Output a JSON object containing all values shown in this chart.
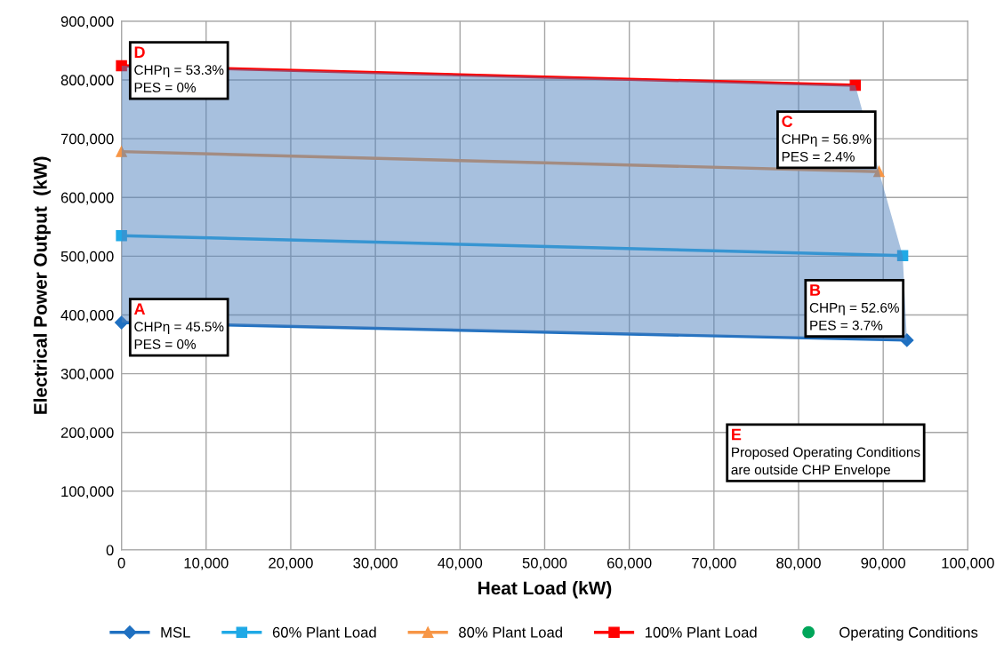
{
  "chart_data": {
    "type": "line",
    "xlabel": "Heat Load (kW)",
    "ylabel": "Electrical Power Output  (kW)",
    "xlim": [
      0,
      100000
    ],
    "ylim": [
      0,
      900000
    ],
    "xticks": [
      0,
      {
        "value": 10000,
        "label": "10,000"
      },
      {
        "value": 20000,
        "label": "20,000"
      },
      {
        "value": 30000,
        "label": "30,000"
      },
      {
        "value": 40000,
        "label": "40,000"
      },
      {
        "value": 50000,
        "label": "50,000"
      },
      {
        "value": 60000,
        "label": "60,000"
      },
      {
        "value": 70000,
        "label": "70,000"
      },
      {
        "value": 80000,
        "label": "80,000"
      },
      {
        "value": 90000,
        "label": "90,000"
      },
      {
        "value": 100000,
        "label": "100,000"
      }
    ],
    "yticks": [
      0,
      {
        "value": 100000,
        "label": "100,000"
      },
      {
        "value": 200000,
        "label": "200,000"
      },
      {
        "value": 300000,
        "label": "300,000"
      },
      {
        "value": 400000,
        "label": "400,000"
      },
      {
        "value": 500000,
        "label": "500,000"
      },
      {
        "value": 600000,
        "label": "600,000"
      },
      {
        "value": 700000,
        "label": "700,000"
      },
      {
        "value": 800000,
        "label": "800,000"
      },
      {
        "value": 900000,
        "label": "900,000"
      }
    ],
    "grid": true,
    "legend": "bottom",
    "series": [
      {
        "type": "area",
        "color": "#4f81bd",
        "x": [
          0,
          86700,
          89500,
          92300,
          92800
        ],
        "values": [
          824000,
          791000,
          644000,
          501000,
          357000
        ]
      },
      {
        "name": "MSL",
        "color": "#1f70c1",
        "marker": "diamond",
        "x": [
          0,
          92800
        ],
        "values": [
          387000,
          357000
        ]
      },
      {
        "name": "60% Plant Load",
        "color": "#1fa9e6",
        "marker": "square",
        "x": [
          0,
          92300
        ],
        "values": [
          535000,
          501000
        ]
      },
      {
        "name": "80% Plant Load",
        "color": "#f79646",
        "marker": "triangle",
        "x": [
          0,
          89500
        ],
        "values": [
          678000,
          644000
        ]
      },
      {
        "name": "100% Plant Load",
        "color": "#ff0000",
        "marker": "square",
        "x": [
          0,
          86700
        ],
        "values": [
          824000,
          791000
        ]
      },
      {
        "name": "Operating Conditions",
        "type": "scatter",
        "color": "#00a65a",
        "marker": "circle"
      }
    ],
    "annotations": [
      {
        "text": "D\nCHPη = 53.3%\nPES = 0%",
        "x": 0,
        "y": 824000
      },
      {
        "text": "A\nCHPη = 45.5%\nPES = 0%",
        "x": 0,
        "y": 387000
      },
      {
        "text": "C\nCHPη = 56.9%\nPES = 2.4%",
        "x": 89500,
        "y": 644000
      },
      {
        "text": "B\nCHPη = 52.6%\nPES = 3.7%",
        "x": 92800,
        "y": 357000
      },
      "E\nProposed Operating Conditions\nare outside CHP Envelope"
    ]
  }
}
